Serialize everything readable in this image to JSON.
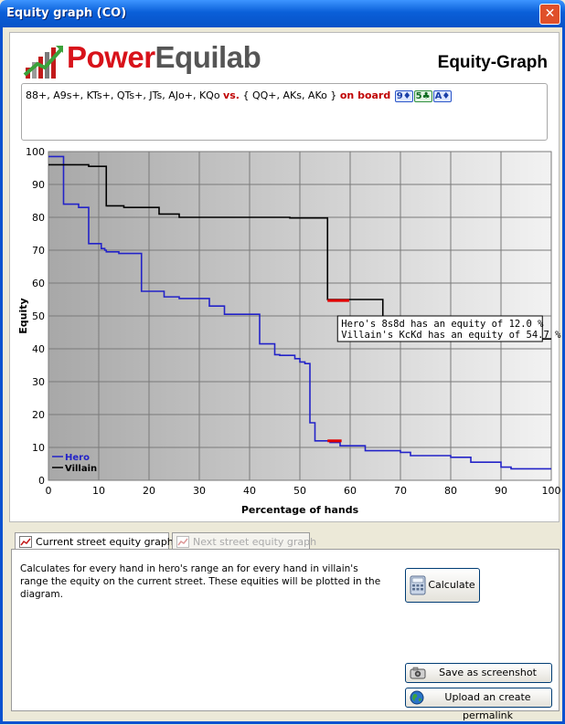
{
  "window": {
    "title": "Equity graph (CO)",
    "close_glyph": "✕"
  },
  "header": {
    "brand_part1": "Power",
    "brand_part2": "Equilab",
    "graph_title": "Equity-Graph"
  },
  "ranges": {
    "hero": "88+, A9s+, KTs+, QTs+, JTs, AJo+, KQo",
    "vs": "vs.",
    "villain": "{ QQ+, AKs, AKo }",
    "on_board": "on board",
    "board_cards": [
      {
        "rank": "9",
        "suit": "♦"
      },
      {
        "rank": "5",
        "suit": "♣"
      },
      {
        "rank": "A",
        "suit": "♦"
      }
    ]
  },
  "chart_data": {
    "type": "line",
    "xlabel": "Percentage of hands",
    "ylabel": "Equity",
    "xlim": [
      0,
      100
    ],
    "ylim": [
      0,
      100
    ],
    "xticks": [
      0,
      10,
      20,
      30,
      40,
      50,
      60,
      70,
      80,
      90,
      100
    ],
    "yticks": [
      0,
      10,
      20,
      30,
      40,
      50,
      60,
      70,
      80,
      90,
      100
    ],
    "grid": true,
    "legend_position": "bottom-left",
    "series": [
      {
        "name": "Hero",
        "color": "#2323c8",
        "step": true,
        "x": [
          0,
          2.8,
          3,
          6,
          8,
          8,
          10.5,
          11.2,
          11.5,
          14,
          18.5,
          23,
          26,
          32,
          35,
          41,
          42,
          45,
          46,
          49,
          50,
          51,
          52,
          53,
          56,
          58,
          63,
          70,
          72,
          80,
          84,
          90,
          92,
          100
        ],
        "y": [
          98.5,
          98.5,
          84,
          83,
          72,
          72,
          70.5,
          70,
          69.5,
          69,
          57.5,
          55.8,
          55.3,
          53,
          50.5,
          50.5,
          41.5,
          38.2,
          38,
          37,
          36,
          35.5,
          17.5,
          12,
          11.5,
          10.5,
          9,
          8.5,
          7.5,
          7,
          5.5,
          4,
          3.5,
          3.5
        ]
      },
      {
        "name": "Villain",
        "color": "#000000",
        "step": true,
        "x": [
          0,
          8,
          11.5,
          15,
          22,
          26,
          40,
          48,
          55.5,
          60,
          66.5,
          72,
          100
        ],
        "y": [
          96,
          95.5,
          83.5,
          83,
          81,
          80,
          80,
          79.8,
          55,
          55,
          46,
          43,
          43
        ]
      }
    ],
    "highlight": {
      "hero": {
        "x": [
          55.5,
          58.3
        ],
        "y": 12.0
      },
      "villain": {
        "x": [
          55.5,
          59.8
        ],
        "y": 54.7
      },
      "tooltip_line1": "Hero's 8s8d has an equity of 12.0 %",
      "tooltip_line2": "Villain's KcKd has an equity of 54.7 %"
    }
  },
  "tabs": [
    {
      "label": "Current street equity graph",
      "active": true
    },
    {
      "label": "Next street equity graph",
      "active": false
    }
  ],
  "panel": {
    "description": "Calculates for every hand in hero's range an for every hand in villain's range the equity on the current street. These equities will be plotted in the diagram.",
    "calculate_label": "Calculate",
    "screenshot_label": "Save as screenshot",
    "permalink_label": "Upload an create permalink"
  }
}
